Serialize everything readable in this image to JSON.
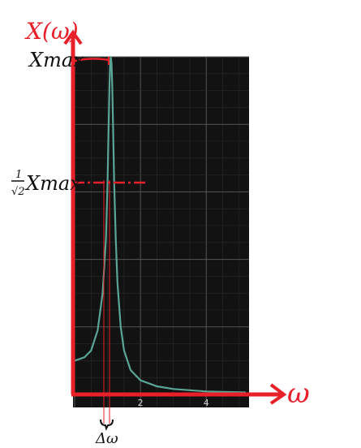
{
  "chart_data": {
    "type": "line",
    "title": "",
    "xlabel": "ω",
    "ylabel": "X(ω)",
    "xlim": [
      -0.05,
      5.3
    ],
    "ylim": [
      0,
      10
    ],
    "xticks": [
      2,
      4
    ],
    "grid": true,
    "series": [
      {
        "color": "#5aa595",
        "x": [
          0.0,
          0.3,
          0.5,
          0.7,
          0.85,
          0.95,
          1.0,
          1.03,
          1.06,
          1.08,
          1.1,
          1.12,
          1.14,
          1.17,
          1.2,
          1.25,
          1.3,
          1.4,
          1.5,
          1.7,
          2.0,
          2.5,
          3.0,
          4.0,
          5.2
        ],
        "y": [
          1.0,
          1.1,
          1.3,
          1.9,
          3.0,
          4.6,
          6.3,
          7.8,
          9.2,
          9.8,
          10.0,
          9.8,
          9.2,
          7.8,
          6.3,
          4.6,
          3.3,
          2.0,
          1.3,
          0.72,
          0.42,
          0.24,
          0.16,
          0.09,
          0.06
        ]
      }
    ],
    "annotations": {
      "x_axis_label": "ω",
      "y_axis_label": "X(ω)",
      "ymax_label": "Xmax",
      "half_power_label_num": "1",
      "half_power_label_den": "√2",
      "half_power_label_rest": "Xmax",
      "bandwidth_label": "Δω"
    }
  },
  "colors": {
    "plot_bg": "#121212",
    "grid": "#4a4a4a",
    "curve": "#5aa595",
    "annotation": "#e8202a",
    "handwriting": "#111111",
    "tick_text": "#cfcfcf"
  }
}
